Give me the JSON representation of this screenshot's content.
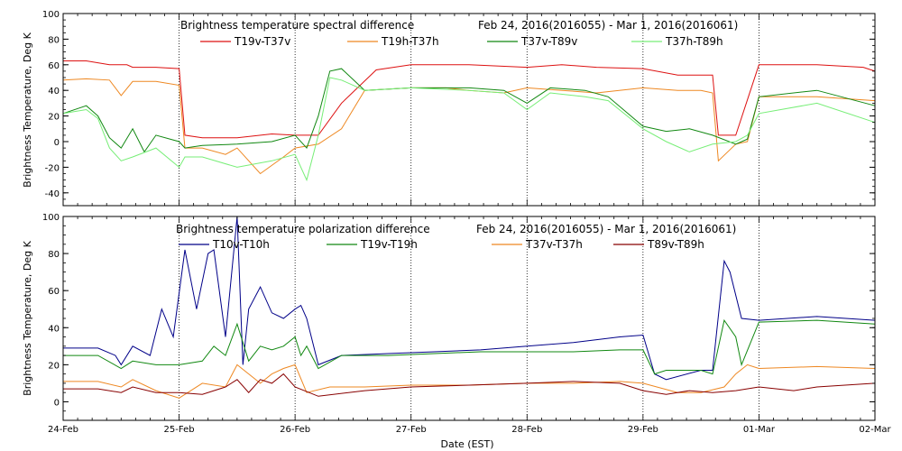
{
  "xlabel": "Date (EST)",
  "x_ticks": [
    "24-Feb",
    "25-Feb",
    "26-Feb",
    "27-Feb",
    "28-Feb",
    "29-Feb",
    "01-Mar",
    "02-Mar"
  ],
  "chart_data": [
    {
      "type": "line",
      "title": "Brightness temperature spectral difference",
      "subtitle": "Feb 24, 2016(2016055)  -  Mar  1, 2016(2016061)",
      "xlabel": "",
      "ylabel": "Brightness Temperature, Deg K",
      "xlim": [
        0,
        7
      ],
      "ylim": [
        -50,
        100
      ],
      "y_ticks": [
        -40,
        -20,
        0,
        20,
        40,
        60,
        80,
        100
      ],
      "grid": "vertical dotted at each day",
      "legend_position": "top",
      "series": [
        {
          "name": "T19v-T37v",
          "color": "#dd1111",
          "x": [
            0,
            0.2,
            0.4,
            0.55,
            0.6,
            0.8,
            1.0,
            1.05,
            1.2,
            1.5,
            1.8,
            2.0,
            2.2,
            2.4,
            2.7,
            3.0,
            3.5,
            4.0,
            4.3,
            4.6,
            5.0,
            5.3,
            5.5,
            5.6,
            5.65,
            5.8,
            6.0,
            6.5,
            6.9,
            7.0
          ],
          "values": [
            63,
            63,
            60,
            60,
            58,
            58,
            57,
            5,
            3,
            3,
            6,
            5,
            5,
            30,
            56,
            60,
            60,
            58,
            60,
            58,
            57,
            52,
            52,
            52,
            5,
            5,
            60,
            60,
            58,
            55
          ]
        },
        {
          "name": "T19h-T37h",
          "color": "#ee8822",
          "x": [
            0,
            0.2,
            0.4,
            0.5,
            0.6,
            0.8,
            1.0,
            1.05,
            1.2,
            1.4,
            1.5,
            1.7,
            1.9,
            2.0,
            2.2,
            2.4,
            2.6,
            3.0,
            3.3,
            3.5,
            3.8,
            4.0,
            4.3,
            4.6,
            5.0,
            5.3,
            5.5,
            5.6,
            5.65,
            5.8,
            5.9,
            6.0,
            6.5,
            7.0
          ],
          "values": [
            48,
            49,
            48,
            36,
            47,
            47,
            44,
            -5,
            -5,
            -10,
            -5,
            -25,
            -12,
            -5,
            -2,
            10,
            40,
            42,
            42,
            40,
            38,
            42,
            40,
            38,
            42,
            40,
            40,
            38,
            -15,
            -2,
            0,
            35,
            35,
            32
          ]
        },
        {
          "name": "T37v-T89v",
          "color": "#118811",
          "x": [
            0,
            0.2,
            0.3,
            0.4,
            0.5,
            0.6,
            0.7,
            0.8,
            1.0,
            1.05,
            1.2,
            1.5,
            1.8,
            2.0,
            2.1,
            2.2,
            2.3,
            2.4,
            2.6,
            3.0,
            3.5,
            3.8,
            4.0,
            4.2,
            4.5,
            4.7,
            5.0,
            5.2,
            5.4,
            5.6,
            5.8,
            5.9,
            6.0,
            6.5,
            7.0
          ],
          "values": [
            22,
            28,
            20,
            3,
            -5,
            10,
            -8,
            5,
            0,
            -5,
            -3,
            -2,
            0,
            5,
            -5,
            20,
            55,
            57,
            40,
            42,
            42,
            40,
            30,
            42,
            40,
            35,
            12,
            8,
            10,
            5,
            -2,
            2,
            35,
            40,
            28
          ]
        },
        {
          "name": "T37h-T89h",
          "color": "#77ee77",
          "x": [
            0,
            0.2,
            0.3,
            0.4,
            0.5,
            0.6,
            0.8,
            1.0,
            1.05,
            1.2,
            1.5,
            1.8,
            2.0,
            2.1,
            2.2,
            2.3,
            2.4,
            2.6,
            3.0,
            3.5,
            3.8,
            4.0,
            4.2,
            4.5,
            4.7,
            5.0,
            5.2,
            5.4,
            5.6,
            5.8,
            5.9,
            6.0,
            6.5,
            7.0
          ],
          "values": [
            22,
            25,
            18,
            -5,
            -15,
            -12,
            -5,
            -20,
            -12,
            -12,
            -20,
            -15,
            -10,
            -30,
            5,
            50,
            48,
            40,
            42,
            40,
            38,
            25,
            38,
            35,
            32,
            10,
            0,
            -8,
            -2,
            0,
            5,
            22,
            30,
            15
          ]
        }
      ]
    },
    {
      "type": "line",
      "title": "Brightness temperature polarization difference",
      "subtitle": "Feb 24, 2016(2016055)  -  Mar  1, 2016(2016061)",
      "xlabel": "Date (EST)",
      "ylabel": "Brightness Temperature, Deg K",
      "xlim": [
        0,
        7
      ],
      "ylim": [
        -10,
        100
      ],
      "y_ticks": [
        0,
        20,
        40,
        60,
        80,
        100
      ],
      "grid": "vertical dotted at each day",
      "legend_position": "top",
      "series": [
        {
          "name": "T10v-T10h",
          "color": "#000088",
          "x": [
            0,
            0.3,
            0.45,
            0.5,
            0.6,
            0.75,
            0.85,
            0.95,
            1.05,
            1.15,
            1.25,
            1.3,
            1.4,
            1.5,
            1.55,
            1.6,
            1.7,
            1.8,
            1.9,
            2.0,
            2.05,
            2.1,
            2.2,
            2.4,
            2.8,
            3.2,
            3.6,
            4.0,
            4.4,
            4.8,
            5.0,
            5.1,
            5.2,
            5.5,
            5.6,
            5.7,
            5.75,
            5.85,
            6.0,
            6.5,
            7.0
          ],
          "values": [
            29,
            29,
            25,
            20,
            30,
            25,
            50,
            35,
            82,
            50,
            80,
            82,
            35,
            100,
            20,
            50,
            62,
            48,
            45,
            50,
            52,
            45,
            20,
            25,
            26,
            27,
            28,
            30,
            32,
            35,
            36,
            15,
            12,
            17,
            17,
            76,
            70,
            45,
            44,
            46,
            44
          ]
        },
        {
          "name": "T19v-T19h",
          "color": "#118811",
          "x": [
            0,
            0.3,
            0.5,
            0.6,
            0.8,
            1.0,
            1.2,
            1.3,
            1.4,
            1.5,
            1.6,
            1.7,
            1.8,
            1.9,
            2.0,
            2.05,
            2.1,
            2.2,
            2.4,
            2.8,
            3.2,
            3.6,
            4.0,
            4.4,
            4.8,
            5.0,
            5.1,
            5.2,
            5.5,
            5.6,
            5.7,
            5.8,
            5.85,
            6.0,
            6.5,
            7.0
          ],
          "values": [
            25,
            25,
            18,
            22,
            20,
            20,
            22,
            30,
            25,
            42,
            22,
            30,
            28,
            30,
            35,
            25,
            30,
            18,
            25,
            25,
            26,
            27,
            27,
            27,
            28,
            28,
            15,
            17,
            17,
            15,
            44,
            35,
            20,
            43,
            44,
            42
          ]
        },
        {
          "name": "T37v-T37h",
          "color": "#ee8822",
          "x": [
            0,
            0.3,
            0.5,
            0.6,
            0.8,
            1.0,
            1.2,
            1.4,
            1.5,
            1.7,
            1.8,
            1.9,
            2.0,
            2.1,
            2.3,
            2.6,
            3.0,
            3.5,
            4.0,
            4.4,
            4.8,
            5.0,
            5.3,
            5.5,
            5.7,
            5.8,
            5.9,
            6.0,
            6.5,
            7.0
          ],
          "values": [
            11,
            11,
            8,
            12,
            6,
            2,
            10,
            8,
            20,
            10,
            15,
            18,
            20,
            5,
            8,
            8,
            9,
            9,
            10,
            10,
            11,
            10,
            5,
            5,
            8,
            15,
            20,
            18,
            19,
            18
          ]
        },
        {
          "name": "T89v-T89h",
          "color": "#880000",
          "x": [
            0,
            0.3,
            0.5,
            0.6,
            0.8,
            1.0,
            1.2,
            1.4,
            1.5,
            1.6,
            1.7,
            1.8,
            1.9,
            2.0,
            2.2,
            2.6,
            3.0,
            3.5,
            4.0,
            4.4,
            4.8,
            5.0,
            5.2,
            5.4,
            5.6,
            5.8,
            6.0,
            6.3,
            6.5,
            7.0
          ],
          "values": [
            7,
            7,
            5,
            8,
            5,
            5,
            4,
            8,
            12,
            5,
            12,
            10,
            15,
            8,
            3,
            6,
            8,
            9,
            10,
            11,
            10,
            6,
            4,
            6,
            5,
            6,
            8,
            6,
            8,
            10
          ]
        }
      ]
    }
  ]
}
